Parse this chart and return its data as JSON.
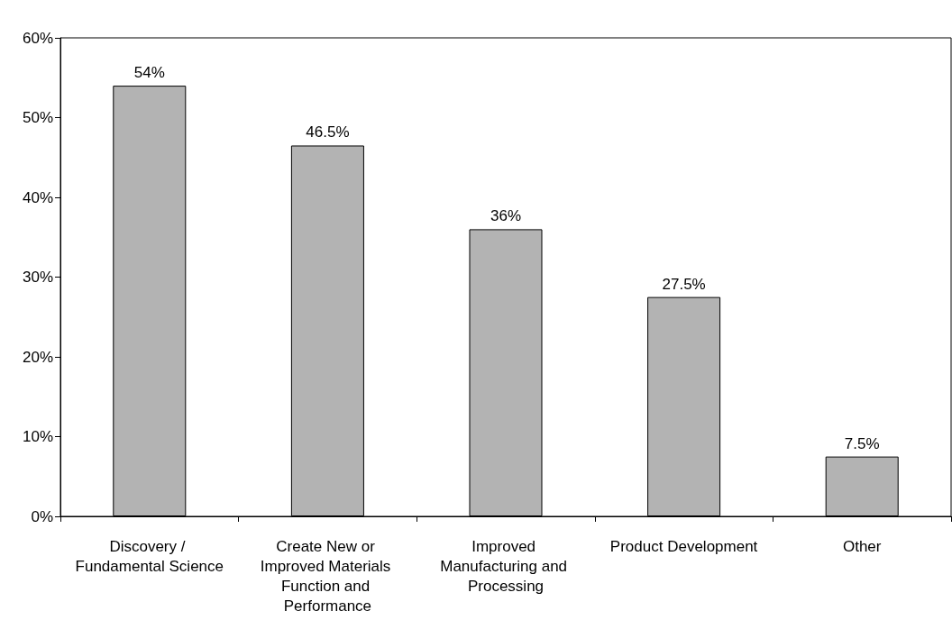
{
  "chart_data": {
    "type": "bar",
    "categories": [
      "Discovery / Fundamental Science",
      "Create New or Improved Materials Function and Performance",
      "Improved Manufacturing and Processing",
      "Product Development",
      "Other"
    ],
    "values": [
      54,
      46.5,
      36,
      27.5,
      7.5
    ],
    "value_labels": [
      "54%",
      "46.5%",
      "36%",
      "27.5%",
      "7.5%"
    ],
    "color": "#b3b3b3",
    "ylim": [
      0,
      60
    ],
    "yticks": [
      {
        "value": 0,
        "label": "0%"
      },
      {
        "value": 10,
        "label": "10%"
      },
      {
        "value": 20,
        "label": "20%"
      },
      {
        "value": 30,
        "label": "30%"
      },
      {
        "value": 40,
        "label": "40%"
      },
      {
        "value": 50,
        "label": "50%"
      },
      {
        "value": 60,
        "label": "60%"
      }
    ],
    "grid": false
  }
}
